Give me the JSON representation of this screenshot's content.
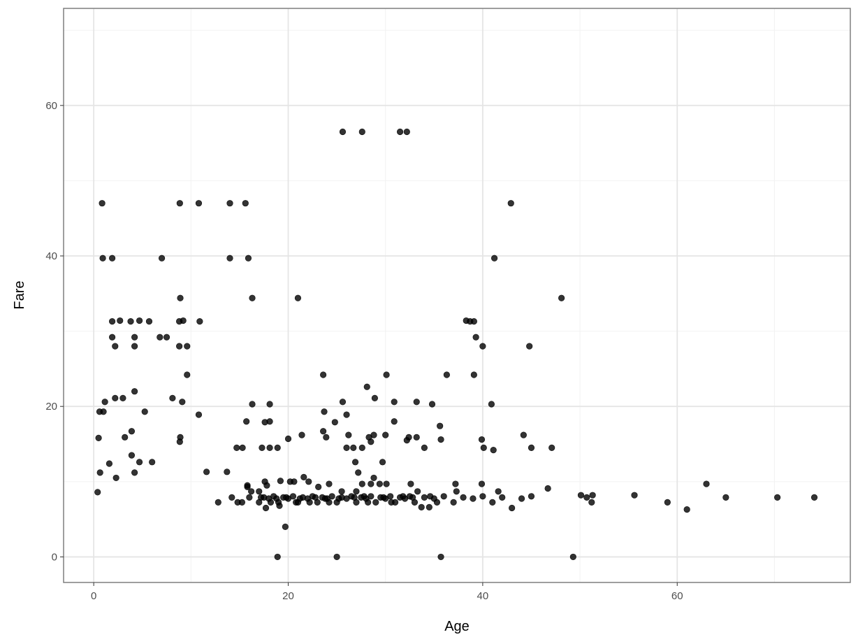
{
  "chart_data": {
    "type": "scatter",
    "title": "",
    "xlabel": "Age",
    "ylabel": "Fare",
    "xlim": [
      -3.1,
      77.8
    ],
    "ylim": [
      -3.4,
      72.9
    ],
    "xticks": [
      0,
      20,
      40,
      60
    ],
    "yticks": [
      0,
      20,
      40,
      60
    ],
    "xtick_labels": [
      "0",
      "20",
      "40",
      "60"
    ],
    "ytick_labels": [
      "0",
      "20",
      "40",
      "60"
    ],
    "grid": true,
    "theme": "bw",
    "point_color": "#000000",
    "point_alpha": 0.8,
    "points": [
      [
        0.86,
        47.0
      ],
      [
        0.93,
        39.7
      ],
      [
        1.9,
        39.7
      ],
      [
        0.6,
        19.3
      ],
      [
        1.0,
        19.3
      ],
      [
        1.15,
        20.6
      ],
      [
        0.5,
        15.8
      ],
      [
        0.65,
        11.2
      ],
      [
        0.4,
        8.6
      ],
      [
        1.9,
        31.3
      ],
      [
        1.9,
        29.2
      ],
      [
        2.2,
        28.0
      ],
      [
        2.2,
        21.1
      ],
      [
        1.6,
        12.4
      ],
      [
        2.3,
        10.5
      ],
      [
        2.7,
        31.4
      ],
      [
        3.0,
        21.1
      ],
      [
        3.2,
        15.9
      ],
      [
        3.8,
        31.3
      ],
      [
        4.2,
        29.2
      ],
      [
        4.2,
        28.0
      ],
      [
        4.2,
        22.0
      ],
      [
        3.9,
        16.7
      ],
      [
        3.9,
        13.5
      ],
      [
        4.2,
        11.2
      ],
      [
        4.7,
        12.6
      ],
      [
        4.7,
        31.4
      ],
      [
        5.25,
        19.3
      ],
      [
        5.7,
        31.3
      ],
      [
        6.0,
        12.6
      ],
      [
        6.8,
        29.2
      ],
      [
        7.0,
        39.7
      ],
      [
        7.5,
        29.2
      ],
      [
        8.1,
        21.1
      ],
      [
        8.85,
        47.0
      ],
      [
        8.9,
        34.4
      ],
      [
        8.8,
        31.3
      ],
      [
        9.2,
        31.4
      ],
      [
        8.8,
        28.0
      ],
      [
        9.1,
        20.6
      ],
      [
        8.9,
        15.9
      ],
      [
        8.85,
        15.3
      ],
      [
        9.6,
        28.0
      ],
      [
        9.6,
        24.2
      ],
      [
        10.8,
        47.0
      ],
      [
        10.9,
        31.3
      ],
      [
        10.8,
        18.9
      ],
      [
        11.6,
        11.3
      ],
      [
        12.8,
        7.25
      ],
      [
        13.7,
        11.3
      ],
      [
        14.0,
        47.0
      ],
      [
        14.0,
        39.7
      ],
      [
        14.2,
        7.9
      ],
      [
        14.7,
        14.5
      ],
      [
        14.8,
        7.25
      ],
      [
        15.3,
        14.5
      ],
      [
        15.25,
        7.25
      ],
      [
        15.6,
        47.0
      ],
      [
        15.7,
        18.0
      ],
      [
        15.8,
        9.3
      ],
      [
        15.8,
        9.5
      ],
      [
        15.9,
        39.7
      ],
      [
        16.3,
        34.4
      ],
      [
        16.3,
        20.3
      ],
      [
        16.0,
        7.9
      ],
      [
        16.2,
        8.7
      ],
      [
        17.0,
        8.7
      ],
      [
        17.3,
        14.5
      ],
      [
        17.6,
        17.9
      ],
      [
        17.6,
        10.0
      ],
      [
        17.8,
        9.5
      ],
      [
        18.1,
        18.0
      ],
      [
        18.1,
        20.3
      ],
      [
        18.1,
        14.5
      ],
      [
        18.9,
        14.5
      ],
      [
        19.2,
        10.1
      ],
      [
        18.9,
        0.0
      ],
      [
        19.7,
        4.0
      ],
      [
        20.0,
        15.7
      ],
      [
        20.2,
        10.0
      ],
      [
        20.6,
        10.0
      ],
      [
        21.0,
        34.4
      ],
      [
        21.4,
        16.2
      ],
      [
        21.6,
        10.6
      ],
      [
        22.1,
        10.0
      ],
      [
        23.1,
        9.3
      ],
      [
        23.6,
        24.2
      ],
      [
        23.6,
        16.7
      ],
      [
        23.7,
        19.3
      ],
      [
        23.9,
        15.9
      ],
      [
        24.2,
        9.7
      ],
      [
        25.0,
        0.0
      ],
      [
        24.8,
        17.9
      ],
      [
        25.5,
        8.7
      ],
      [
        25.6,
        56.5
      ],
      [
        25.6,
        20.6
      ],
      [
        26.0,
        18.9
      ],
      [
        26.2,
        16.2
      ],
      [
        26.0,
        14.5
      ],
      [
        26.7,
        14.5
      ],
      [
        26.9,
        12.6
      ],
      [
        27.0,
        8.7
      ],
      [
        27.2,
        11.2
      ],
      [
        27.6,
        56.5
      ],
      [
        27.6,
        14.5
      ],
      [
        27.6,
        9.7
      ],
      [
        28.1,
        22.6
      ],
      [
        28.3,
        15.9
      ],
      [
        28.5,
        15.3
      ],
      [
        28.5,
        9.7
      ],
      [
        28.9,
        21.1
      ],
      [
        28.8,
        16.2
      ],
      [
        28.8,
        10.5
      ],
      [
        29.4,
        9.7
      ],
      [
        29.7,
        12.6
      ],
      [
        30.1,
        24.2
      ],
      [
        30.0,
        16.2
      ],
      [
        30.1,
        9.7
      ],
      [
        30.9,
        20.6
      ],
      [
        30.9,
        18.0
      ],
      [
        31.5,
        56.5
      ],
      [
        32.2,
        56.5
      ],
      [
        32.2,
        15.5
      ],
      [
        32.4,
        15.9
      ],
      [
        32.6,
        9.7
      ],
      [
        33.2,
        20.6
      ],
      [
        33.2,
        15.9
      ],
      [
        33.3,
        8.7
      ],
      [
        33.7,
        6.6
      ],
      [
        34.5,
        6.6
      ],
      [
        34.0,
        14.5
      ],
      [
        34.8,
        20.3
      ],
      [
        35.6,
        17.4
      ],
      [
        35.7,
        15.6
      ],
      [
        35.7,
        0.0
      ],
      [
        36.3,
        24.2
      ],
      [
        37.2,
        9.7
      ],
      [
        37.3,
        8.7
      ],
      [
        38.3,
        31.4
      ],
      [
        38.7,
        31.3
      ],
      [
        39.1,
        31.3
      ],
      [
        39.3,
        29.2
      ],
      [
        39.1,
        24.2
      ],
      [
        40.0,
        28.0
      ],
      [
        39.9,
        15.6
      ],
      [
        39.9,
        9.7
      ],
      [
        40.1,
        14.5
      ],
      [
        40.9,
        20.3
      ],
      [
        41.1,
        14.2
      ],
      [
        41.2,
        39.7
      ],
      [
        41.6,
        8.7
      ],
      [
        42.9,
        47.0
      ],
      [
        43.0,
        6.5
      ],
      [
        44.2,
        16.2
      ],
      [
        44.8,
        28.0
      ],
      [
        45.0,
        14.5
      ],
      [
        46.7,
        9.1
      ],
      [
        47.1,
        14.5
      ],
      [
        48.1,
        34.4
      ],
      [
        49.3,
        0.0
      ],
      [
        50.1,
        8.2
      ],
      [
        50.7,
        7.9
      ],
      [
        51.3,
        8.2
      ],
      [
        51.2,
        7.25
      ],
      [
        55.6,
        8.2
      ],
      [
        59.0,
        7.25
      ],
      [
        61.0,
        6.3
      ],
      [
        63.0,
        9.7
      ],
      [
        65.0,
        7.9
      ],
      [
        70.3,
        7.9
      ],
      [
        74.1,
        7.9
      ],
      [
        17.7,
        6.5
      ],
      [
        19.1,
        6.8
      ],
      [
        17.0,
        7.25
      ],
      [
        17.5,
        7.9
      ],
      [
        18.0,
        7.75
      ],
      [
        18.5,
        8.05
      ],
      [
        19.0,
        7.25
      ],
      [
        19.5,
        7.9
      ],
      [
        20.0,
        7.75
      ],
      [
        20.5,
        8.05
      ],
      [
        21.0,
        7.25
      ],
      [
        21.5,
        7.9
      ],
      [
        22.0,
        7.75
      ],
      [
        22.5,
        8.05
      ],
      [
        23.0,
        7.25
      ],
      [
        23.5,
        7.9
      ],
      [
        24.0,
        7.75
      ],
      [
        24.5,
        8.05
      ],
      [
        25.0,
        7.25
      ],
      [
        25.5,
        7.9
      ],
      [
        26.0,
        7.75
      ],
      [
        26.5,
        8.05
      ],
      [
        27.0,
        7.25
      ],
      [
        27.5,
        7.9
      ],
      [
        28.0,
        7.75
      ],
      [
        28.5,
        8.05
      ],
      [
        29.0,
        7.25
      ],
      [
        29.5,
        7.9
      ],
      [
        30.0,
        7.75
      ],
      [
        30.5,
        8.05
      ],
      [
        31.0,
        7.25
      ],
      [
        31.5,
        7.9
      ],
      [
        32.0,
        7.75
      ],
      [
        32.5,
        8.05
      ],
      [
        33.0,
        7.25
      ],
      [
        34.0,
        7.9
      ],
      [
        35.0,
        7.75
      ],
      [
        36.0,
        8.05
      ],
      [
        37.0,
        7.25
      ],
      [
        38.0,
        7.9
      ],
      [
        39.0,
        7.75
      ],
      [
        40.0,
        8.05
      ],
      [
        41.0,
        7.25
      ],
      [
        42.0,
        7.9
      ],
      [
        44.0,
        7.75
      ],
      [
        45.0,
        8.05
      ],
      [
        18.2,
        7.25
      ],
      [
        19.8,
        7.9
      ],
      [
        21.2,
        7.75
      ],
      [
        22.8,
        7.9
      ],
      [
        24.2,
        7.25
      ],
      [
        25.2,
        7.75
      ],
      [
        26.8,
        7.9
      ],
      [
        28.2,
        7.25
      ],
      [
        29.8,
        7.9
      ],
      [
        30.6,
        7.25
      ],
      [
        32.8,
        7.9
      ],
      [
        35.3,
        7.25
      ],
      [
        17.2,
        7.9
      ],
      [
        18.8,
        7.75
      ],
      [
        20.8,
        7.25
      ],
      [
        22.2,
        7.25
      ],
      [
        23.8,
        7.75
      ],
      [
        27.8,
        8.05
      ],
      [
        31.8,
        8.05
      ],
      [
        34.6,
        8.05
      ]
    ]
  }
}
